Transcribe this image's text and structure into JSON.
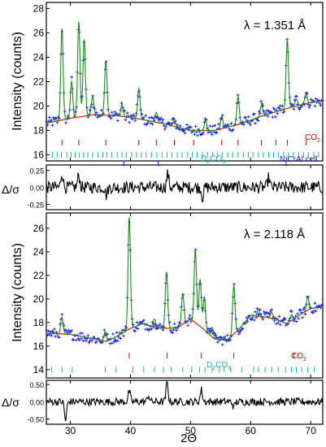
{
  "figure": {
    "xlabel": "2Θ",
    "xlim": [
      26,
      72
    ],
    "x_ticks": [
      30,
      40,
      50,
      60,
      70
    ]
  },
  "colors": {
    "observed": "#1a1aff",
    "calculated": "#1a8c1a",
    "background": "#cc2200",
    "tick_co2": "#cc0000",
    "tick_d2co3": "#1ab0b0",
    "tick_nicral": "#1a1aff",
    "difference": "#000000"
  },
  "chart_data": [
    {
      "id": "top-main",
      "type": "scatter",
      "ylabel": "Intensity (counts)",
      "annotation": "λ = 1.351 Å",
      "ylim": [
        15.5,
        28.5
      ],
      "y_ticks": [
        16,
        18,
        20,
        22,
        24,
        26,
        28
      ],
      "background": {
        "x": [
          26,
          30,
          34,
          38,
          42,
          46,
          50,
          54,
          58,
          62,
          66,
          70,
          72
        ],
        "y": [
          18.6,
          19.0,
          19.3,
          19.2,
          18.9,
          18.5,
          18.0,
          18.0,
          18.5,
          19.2,
          19.8,
          20.3,
          20.4
        ]
      },
      "peaks": [
        {
          "x": 28.6,
          "h": 7.5
        },
        {
          "x": 30.2,
          "h": 3.0
        },
        {
          "x": 31.4,
          "h": 7.8
        },
        {
          "x": 32.3,
          "h": 6.3
        },
        {
          "x": 33.7,
          "h": 1.5
        },
        {
          "x": 35.9,
          "h": 4.5
        },
        {
          "x": 38.6,
          "h": 1.0
        },
        {
          "x": 41.4,
          "h": 2.5
        },
        {
          "x": 44.3,
          "h": 0.8
        },
        {
          "x": 47.3,
          "h": 0.6
        },
        {
          "x": 52.5,
          "h": 0.8
        },
        {
          "x": 55.2,
          "h": 1.0
        },
        {
          "x": 57.9,
          "h": 2.3
        },
        {
          "x": 61.8,
          "h": 0.9
        },
        {
          "x": 66.1,
          "h": 5.6
        },
        {
          "x": 67.6,
          "h": 0.6
        },
        {
          "x": 69.2,
          "h": 0.8
        }
      ],
      "phases": [
        {
          "name": "CO2",
          "name_base": "CO",
          "name_sub": "2",
          "color": "#cc0000",
          "y": 17.0,
          "positions": [
            28.6,
            31.4,
            35.9,
            41.4,
            44.3,
            47.3,
            50.5,
            55.2,
            57.9,
            61.8,
            64.2,
            66.1,
            69.2
          ]
        },
        {
          "name": "D2CO3",
          "name_base": "D",
          "name_sub": "2",
          "name_tail": "CO",
          "name_sub2": "3",
          "color": "#1ab0b0",
          "y": 16.0,
          "positions": [
            27.0,
            27.8,
            28.5,
            29.4,
            30.1,
            30.8,
            31.5,
            32.2,
            32.9,
            33.7,
            34.6,
            35.4,
            36.1,
            36.9,
            37.8,
            38.6,
            39.3,
            40.2,
            41.0,
            41.8,
            42.6,
            43.5,
            44.4,
            45.3,
            46.1,
            46.9,
            47.8,
            48.6,
            49.5,
            50.3,
            51.1,
            52.0,
            52.8,
            53.7,
            54.5,
            55.3,
            56.2,
            57.0,
            57.9,
            58.8,
            59.6,
            60.4,
            61.3,
            62.1,
            63.0,
            63.8,
            64.6,
            65.5,
            66.3,
            67.1,
            68.0,
            68.8,
            69.6,
            70.5,
            71.3
          ]
        },
        {
          "name": "NiCrAl cell",
          "color": "#1a1aff",
          "y": 15.3,
          "positions": [
            38.9,
            44.6,
            65.9
          ]
        }
      ]
    },
    {
      "id": "top-diff",
      "type": "line",
      "ylabel": "Δ/σ",
      "ylim": [
        -0.33,
        0.33
      ],
      "y_ticks": [
        -0.25,
        0.0,
        0.25
      ],
      "spikes": [
        {
          "x": 28.6,
          "v": 0.22
        },
        {
          "x": 31.4,
          "v": 0.18
        },
        {
          "x": 36.0,
          "v": -0.12
        },
        {
          "x": 46.2,
          "v": 0.2
        },
        {
          "x": 52.0,
          "v": -0.15
        },
        {
          "x": 63.0,
          "v": 0.14
        }
      ],
      "amplitude": 0.09
    },
    {
      "id": "bottom-main",
      "type": "scatter",
      "ylabel": "Intensity (counts)",
      "annotation": "λ = 2.118 Å",
      "ylim": [
        13.3,
        27.3
      ],
      "y_ticks": [
        14,
        16,
        18,
        20,
        22,
        24,
        26
      ],
      "background": {
        "x": [
          26,
          30,
          34,
          36,
          38,
          40,
          42,
          44,
          46,
          48,
          50,
          52,
          54,
          56,
          58,
          60,
          62,
          64,
          66,
          68,
          70,
          72
        ],
        "y": [
          17.1,
          17.0,
          16.6,
          16.4,
          16.9,
          17.5,
          17.9,
          17.6,
          17.5,
          17.6,
          18.3,
          17.5,
          16.6,
          16.5,
          17.4,
          18.6,
          18.5,
          18.3,
          17.9,
          18.6,
          19.2,
          19.3
        ]
      },
      "peaks": [
        {
          "x": 28.6,
          "h": 1.4
        },
        {
          "x": 35.8,
          "h": 0.8
        },
        {
          "x": 39.8,
          "h": 9.5
        },
        {
          "x": 44.0,
          "h": 0.7
        },
        {
          "x": 46.0,
          "h": 4.8
        },
        {
          "x": 48.7,
          "h": 2.6
        },
        {
          "x": 50.8,
          "h": 6.2
        },
        {
          "x": 51.6,
          "h": 4.0
        },
        {
          "x": 52.3,
          "h": 2.8
        },
        {
          "x": 53.6,
          "h": 0.8
        },
        {
          "x": 57.2,
          "h": 4.1
        },
        {
          "x": 61.3,
          "h": 0.6
        },
        {
          "x": 63.5,
          "h": 0.5
        },
        {
          "x": 66.8,
          "h": 0.5
        },
        {
          "x": 69.5,
          "h": 1.1
        }
      ],
      "phases": [
        {
          "name": "CO2",
          "name_base": "CO",
          "name_sub": "2",
          "color": "#cc0000",
          "y": 15.2,
          "positions": [
            39.8,
            46.1,
            51.8,
            57.2,
            67.2
          ]
        },
        {
          "name": "D2CO3",
          "name_base": "D",
          "name_sub": "2",
          "name_tail": "CO",
          "name_sub2": "3",
          "color": "#1ab0b0",
          "y": 14.0,
          "positions": [
            26.9,
            28.6,
            30.3,
            35.8,
            37.6,
            40.4,
            42.2,
            44.0,
            45.5,
            46.8,
            48.7,
            50.2,
            51.5,
            52.4,
            53.6,
            54.8,
            55.6,
            56.7,
            58.5,
            60.5,
            61.3,
            62.4,
            63.5,
            64.6,
            65.8,
            66.8,
            67.6,
            68.5,
            69.5,
            70.6
          ]
        }
      ]
    },
    {
      "id": "bottom-diff",
      "type": "line",
      "ylabel": "Δ/σ",
      "ylim": [
        -0.65,
        0.62
      ],
      "y_ticks": [
        -0.5,
        0.0,
        0.5
      ],
      "spikes": [
        {
          "x": 29.2,
          "v": -0.55
        },
        {
          "x": 39.8,
          "v": 0.3
        },
        {
          "x": 46.1,
          "v": 0.55
        },
        {
          "x": 51.8,
          "v": 0.35
        },
        {
          "x": 57.2,
          "v": -0.15
        },
        {
          "x": 43.0,
          "v": 0.2
        }
      ],
      "amplitude": 0.11
    }
  ]
}
